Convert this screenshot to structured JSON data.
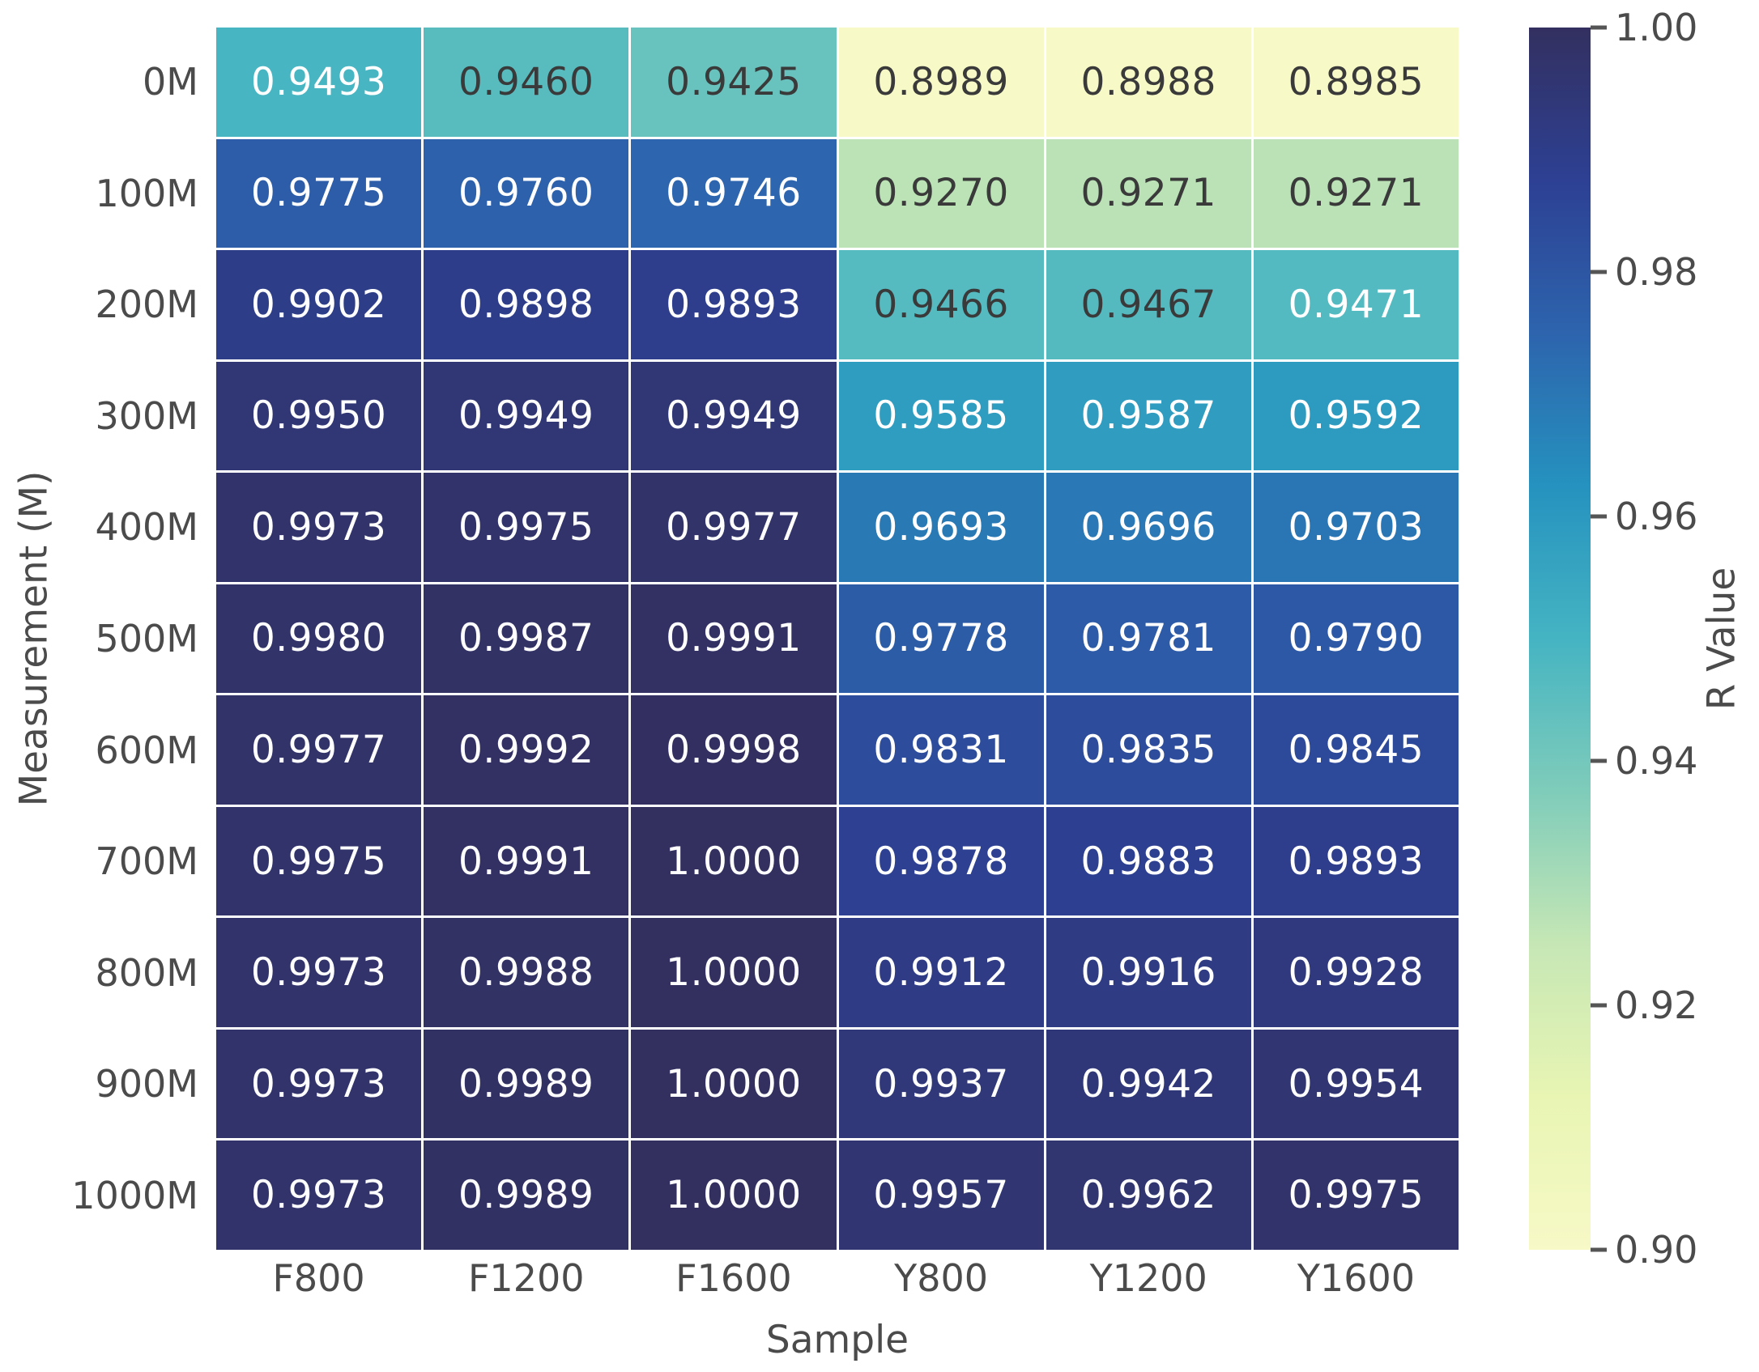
{
  "chart_data": {
    "type": "heatmap",
    "xlabel": "Sample",
    "ylabel": "Measurement (M)",
    "columns": [
      "F800",
      "F1200",
      "F1600",
      "Y800",
      "Y1200",
      "Y1600"
    ],
    "rows": [
      "0M",
      "100M",
      "200M",
      "300M",
      "400M",
      "500M",
      "600M",
      "700M",
      "800M",
      "900M",
      "1000M"
    ],
    "values": [
      [
        0.9493,
        0.946,
        0.9425,
        0.8989,
        0.8988,
        0.8985
      ],
      [
        0.9775,
        0.976,
        0.9746,
        0.927,
        0.9271,
        0.9271
      ],
      [
        0.9902,
        0.9898,
        0.9893,
        0.9466,
        0.9467,
        0.9471
      ],
      [
        0.995,
        0.9949,
        0.9949,
        0.9585,
        0.9587,
        0.9592
      ],
      [
        0.9973,
        0.9975,
        0.9977,
        0.9693,
        0.9696,
        0.9703
      ],
      [
        0.998,
        0.9987,
        0.9991,
        0.9778,
        0.9781,
        0.979
      ],
      [
        0.9977,
        0.9992,
        0.9998,
        0.9831,
        0.9835,
        0.9845
      ],
      [
        0.9975,
        0.9991,
        1.0,
        0.9878,
        0.9883,
        0.9893
      ],
      [
        0.9973,
        0.9988,
        1.0,
        0.9912,
        0.9916,
        0.9928
      ],
      [
        0.9973,
        0.9989,
        1.0,
        0.9937,
        0.9942,
        0.9954
      ],
      [
        0.9973,
        0.9989,
        1.0,
        0.9957,
        0.9962,
        0.9975
      ]
    ],
    "value_decimals": 4,
    "colorbar": {
      "label": "R Value",
      "vmin": 0.9,
      "vmax": 1.0,
      "tick_labels": [
        "1.00",
        "0.98",
        "0.96",
        "0.94",
        "0.92",
        "0.90"
      ]
    },
    "colormap_anchors": [
      "#f7f9c6",
      "#e8f5b3",
      "#c6e7b5",
      "#7fccba",
      "#45b4c2",
      "#2592bf",
      "#2d64ad",
      "#2d4093",
      "#333060"
    ],
    "annotation_text_dark": "#3a3a3a",
    "annotation_text_light": "#ffffff",
    "luminance_threshold": 0.408,
    "grid_line_color": "#ffffff",
    "axis_text_color": "#4b4b4b"
  }
}
